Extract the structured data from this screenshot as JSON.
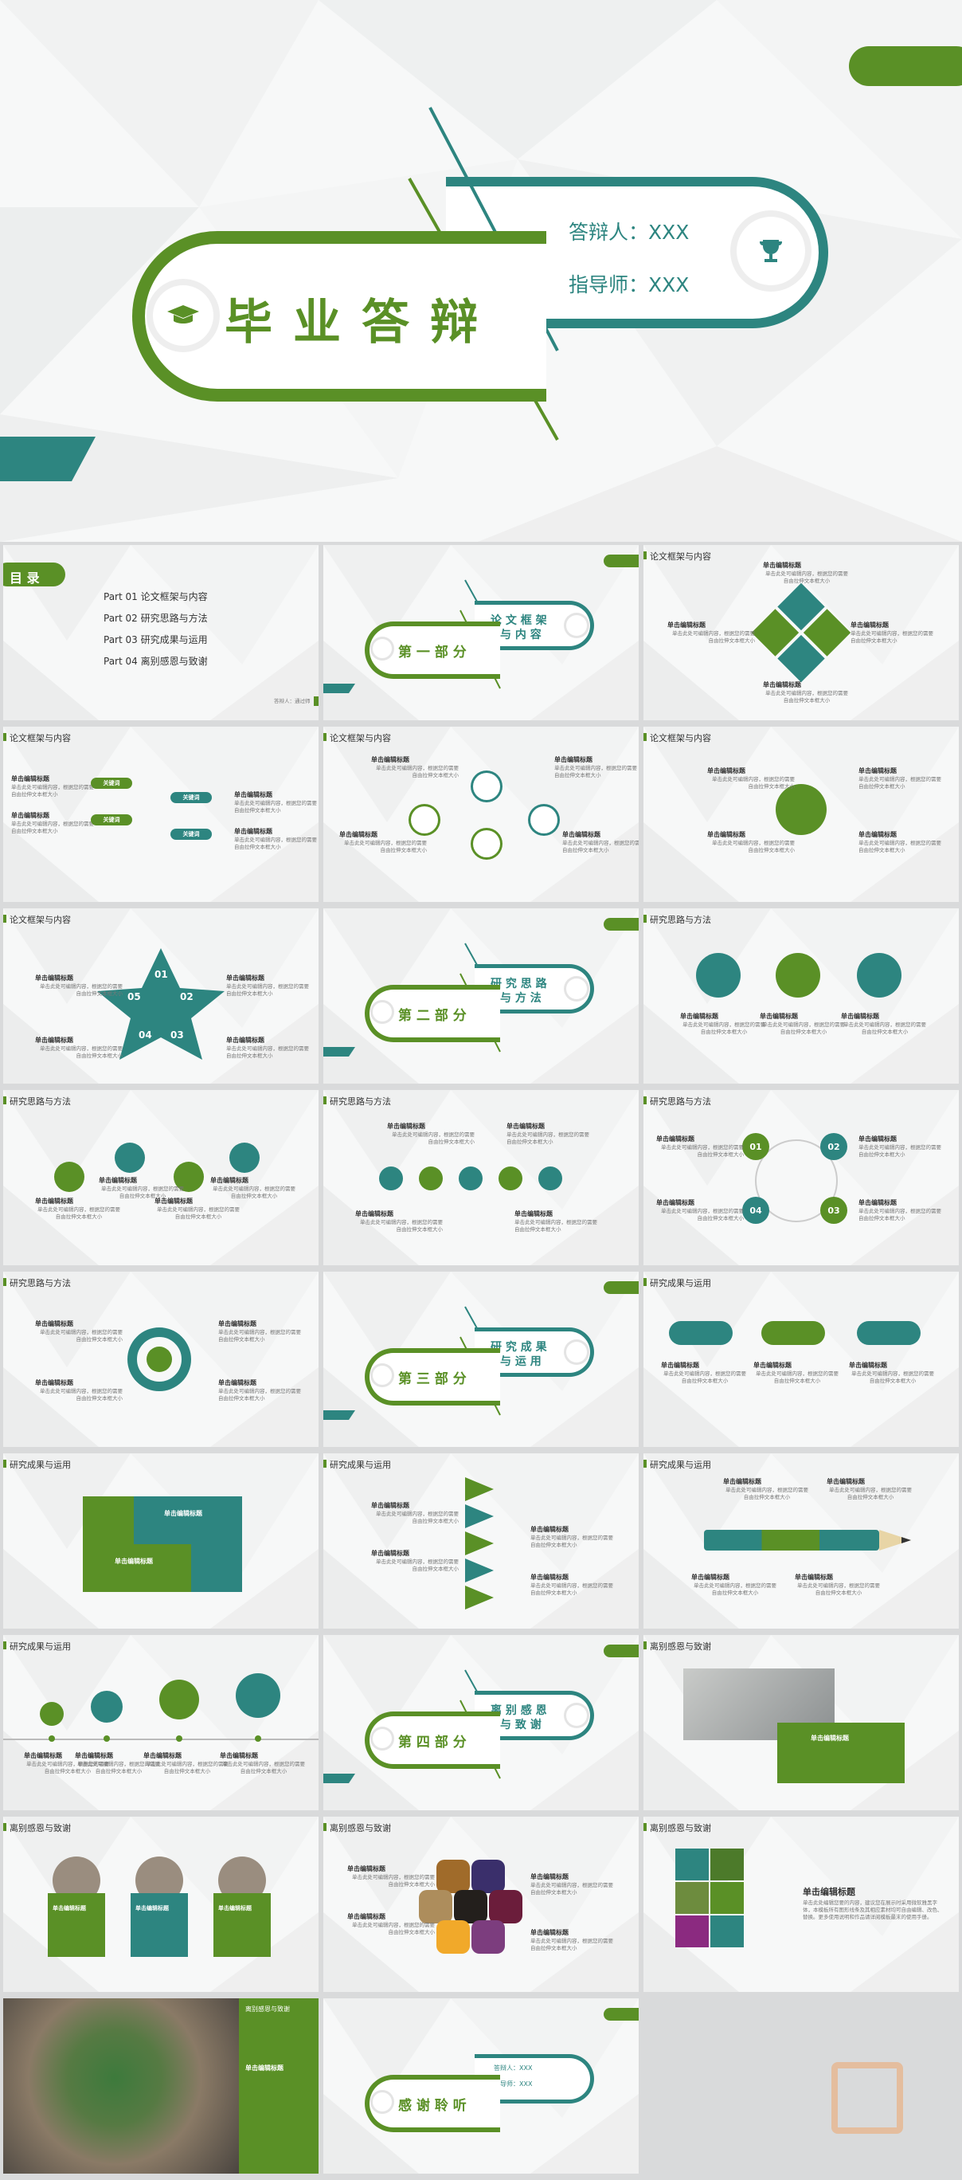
{
  "hero": {
    "title": "毕业答辩",
    "presenter": "答辩人：XXX",
    "advisor": "指导师：XXX"
  },
  "toc": {
    "title": "目 录",
    "items": [
      "Part  01  论文框架与内容",
      "Part  02  研究思路与方法",
      "Part  03  研究成果与运用",
      "Part  04  离别感恩与致谢"
    ],
    "footer": "答辩人：通过师"
  },
  "sections": [
    {
      "part": "第 一 部 分",
      "title_line1": "论 文 框 架",
      "title_line2": "与 内 容"
    },
    {
      "part": "第 二 部 分",
      "title_line1": "研 究 思 路",
      "title_line2": "与 方 法"
    },
    {
      "part": "第 三 部 分",
      "title_line1": "研 究 成 果",
      "title_line2": "与 运 用"
    },
    {
      "part": "第 四 部 分",
      "title_line1": "离 别 感 恩",
      "title_line2": "与 致 谢"
    }
  ],
  "headers": {
    "s1": "论文框架与内容",
    "s2": "研究思路与方法",
    "s3": "研究成果与运用",
    "s4": "离别感恩与致谢"
  },
  "common": {
    "heading": "单击编辑标题",
    "body": "单击此处可编辑内容，根据您的需要自由拉伸文本框大小",
    "keyword": "关键词"
  },
  "numbers": [
    "01",
    "02",
    "03",
    "04",
    "05"
  ],
  "closing": {
    "title": "感 谢 聆 听",
    "presenter": "答辩人：XXX",
    "advisor": "指导师：XXX"
  },
  "last_body": {
    "heading": "单击编辑标题",
    "text": "单击此处编辑您要的内容，建议您在展示时采用微软雅黑字体，本模板所有图形线条及其相应素材均可自由编辑、改色、替换。更多使用说明和作品请详阅模板最末的使用手册。"
  },
  "colors": {
    "green": "#5a9026",
    "teal": "#2d8580",
    "light": "#f7f8f8"
  }
}
